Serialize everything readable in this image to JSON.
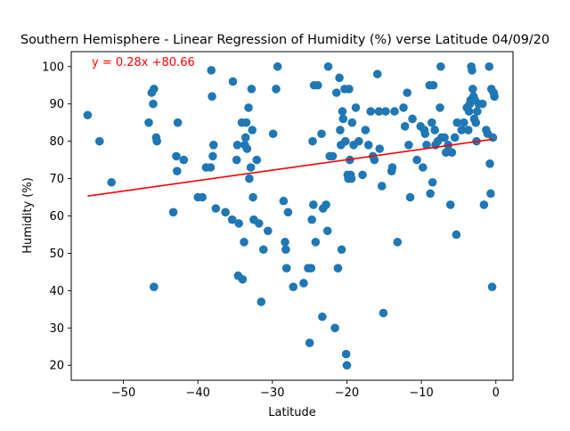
{
  "chart_data": {
    "type": "scatter",
    "title": "Southern Hemisphere - Linear Regression of Humidity (%) verse Latitude 04/09/20",
    "xlabel": "Latitude",
    "ylabel": "Humidity (%)",
    "xlim": [
      -57,
      2.3
    ],
    "ylim": [
      16,
      104
    ],
    "xticks": [
      -50,
      -40,
      -30,
      -20,
      -10,
      0
    ],
    "yticks": [
      20,
      30,
      40,
      50,
      60,
      70,
      80,
      90,
      100
    ],
    "grid": false,
    "marker_color": "#1f77b4",
    "regression": {
      "equation": "y = 0.28x +80.66",
      "slope": 0.28,
      "intercept": 80.66,
      "x_range": [
        -54.8,
        -0.4
      ],
      "color": "#ff0000"
    },
    "points": [
      [
        -54.8,
        87
      ],
      [
        -53.2,
        80
      ],
      [
        -51.6,
        69
      ],
      [
        -46.6,
        85
      ],
      [
        -46.2,
        93
      ],
      [
        -46.0,
        90
      ],
      [
        -45.9,
        94
      ],
      [
        -45.6,
        81
      ],
      [
        -45.5,
        80
      ],
      [
        -45.9,
        41
      ],
      [
        -43.3,
        61
      ],
      [
        -42.9,
        76
      ],
      [
        -42.8,
        72
      ],
      [
        -42.7,
        85
      ],
      [
        -41.9,
        75
      ],
      [
        -40.0,
        65
      ],
      [
        -39.4,
        65
      ],
      [
        -38.9,
        73
      ],
      [
        -38.3,
        73
      ],
      [
        -38.2,
        99
      ],
      [
        -38.1,
        92
      ],
      [
        -38.0,
        76
      ],
      [
        -37.9,
        79
      ],
      [
        -37.6,
        62
      ],
      [
        -36.3,
        61
      ],
      [
        -35.4,
        59
      ],
      [
        -35.3,
        96
      ],
      [
        -34.8,
        75
      ],
      [
        -34.7,
        79
      ],
      [
        -34.6,
        44
      ],
      [
        -34.5,
        58
      ],
      [
        -34.1,
        85
      ],
      [
        -34.0,
        43
      ],
      [
        -33.8,
        53
      ],
      [
        -33.7,
        79
      ],
      [
        -33.6,
        81
      ],
      [
        -33.5,
        85
      ],
      [
        -33.4,
        78
      ],
      [
        -33.2,
        89
      ],
      [
        -33.1,
        70
      ],
      [
        -32.9,
        73
      ],
      [
        -32.8,
        94
      ],
      [
        -32.7,
        83
      ],
      [
        -32.6,
        65
      ],
      [
        -32.5,
        59
      ],
      [
        -32.1,
        75
      ],
      [
        -31.8,
        58
      ],
      [
        -31.5,
        37
      ],
      [
        -31.2,
        51
      ],
      [
        -30.6,
        56
      ],
      [
        -29.9,
        82
      ],
      [
        -29.5,
        94
      ],
      [
        -29.3,
        100
      ],
      [
        -28.5,
        64
      ],
      [
        -28.3,
        53
      ],
      [
        -28.2,
        51
      ],
      [
        -28.1,
        46
      ],
      [
        -27.9,
        61
      ],
      [
        -27.2,
        41
      ],
      [
        -25.8,
        42
      ],
      [
        -25.2,
        46
      ],
      [
        -24.8,
        46
      ],
      [
        -25.0,
        26
      ],
      [
        -24.7,
        59
      ],
      [
        -24.6,
        80
      ],
      [
        -24.5,
        63
      ],
      [
        -24.4,
        95
      ],
      [
        -24.2,
        53
      ],
      [
        -23.9,
        95
      ],
      [
        -23.4,
        82
      ],
      [
        -23.3,
        33
      ],
      [
        -23.2,
        62
      ],
      [
        -22.8,
        63
      ],
      [
        -22.6,
        56
      ],
      [
        -22.5,
        100
      ],
      [
        -22.3,
        76
      ],
      [
        -21.9,
        76
      ],
      [
        -21.6,
        30
      ],
      [
        -21.4,
        93
      ],
      [
        -21.2,
        46
      ],
      [
        -21.0,
        97
      ],
      [
        -20.9,
        83
      ],
      [
        -20.8,
        79
      ],
      [
        -20.7,
        51
      ],
      [
        -20.6,
        88
      ],
      [
        -20.5,
        86
      ],
      [
        -20.3,
        94
      ],
      [
        -20.2,
        80
      ],
      [
        -20.1,
        23
      ],
      [
        -20.0,
        20
      ],
      [
        -19.9,
        71
      ],
      [
        -19.8,
        70
      ],
      [
        -19.7,
        94
      ],
      [
        -19.6,
        75
      ],
      [
        -19.5,
        71
      ],
      [
        -19.4,
        70
      ],
      [
        -19.3,
        85
      ],
      [
        -19.1,
        79
      ],
      [
        -18.8,
        89
      ],
      [
        -18.4,
        80
      ],
      [
        -17.9,
        71
      ],
      [
        -17.5,
        83
      ],
      [
        -17.1,
        79
      ],
      [
        -16.8,
        88
      ],
      [
        -16.5,
        76
      ],
      [
        -16.3,
        75
      ],
      [
        -15.9,
        98
      ],
      [
        -15.7,
        88
      ],
      [
        -15.6,
        78
      ],
      [
        -15.3,
        68
      ],
      [
        -15.1,
        34
      ],
      [
        -14.8,
        88
      ],
      [
        -14.0,
        72
      ],
      [
        -13.9,
        73
      ],
      [
        -13.6,
        88
      ],
      [
        -13.2,
        53
      ],
      [
        -12.4,
        89
      ],
      [
        -12.2,
        84
      ],
      [
        -11.9,
        93
      ],
      [
        -11.7,
        79
      ],
      [
        -11.5,
        65
      ],
      [
        -11.2,
        86
      ],
      [
        -10.6,
        75
      ],
      [
        -10.1,
        84
      ],
      [
        -9.8,
        73
      ],
      [
        -9.6,
        83
      ],
      [
        -9.5,
        82
      ],
      [
        -9.3,
        79
      ],
      [
        -8.9,
        95
      ],
      [
        -8.8,
        66
      ],
      [
        -8.6,
        85
      ],
      [
        -8.5,
        69
      ],
      [
        -8.4,
        95
      ],
      [
        -8.2,
        83
      ],
      [
        -8.1,
        79
      ],
      [
        -7.8,
        80
      ],
      [
        -7.5,
        89
      ],
      [
        -7.4,
        100
      ],
      [
        -7.3,
        81
      ],
      [
        -6.9,
        81
      ],
      [
        -6.7,
        77
      ],
      [
        -6.4,
        79
      ],
      [
        -6.1,
        63
      ],
      [
        -5.9,
        77
      ],
      [
        -5.5,
        81
      ],
      [
        -5.3,
        55
      ],
      [
        -5.2,
        85
      ],
      [
        -4.6,
        83
      ],
      [
        -4.3,
        85
      ],
      [
        -3.9,
        89
      ],
      [
        -3.7,
        83
      ],
      [
        -3.6,
        88
      ],
      [
        -3.5,
        90
      ],
      [
        -3.4,
        91
      ],
      [
        -3.3,
        100
      ],
      [
        -3.2,
        99
      ],
      [
        -3.1,
        94
      ],
      [
        -3.0,
        92
      ],
      [
        -2.9,
        86
      ],
      [
        -2.8,
        91
      ],
      [
        -2.7,
        85
      ],
      [
        -2.6,
        80
      ],
      [
        -2.5,
        88
      ],
      [
        -2.3,
        90
      ],
      [
        -1.8,
        90
      ],
      [
        -1.6,
        63
      ],
      [
        -1.3,
        83
      ],
      [
        -1.1,
        82
      ],
      [
        -0.9,
        100
      ],
      [
        -0.8,
        74
      ],
      [
        -0.7,
        66
      ],
      [
        -0.6,
        94
      ],
      [
        -0.5,
        41
      ],
      [
        -0.4,
        81
      ],
      [
        -0.3,
        93
      ],
      [
        -0.2,
        92
      ]
    ]
  }
}
